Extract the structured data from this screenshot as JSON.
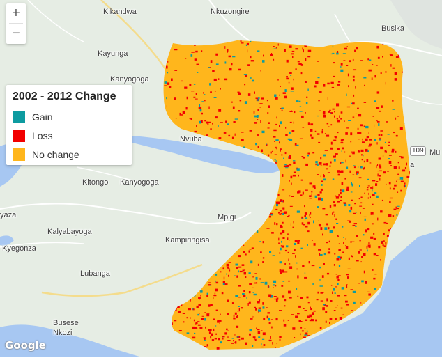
{
  "colors": {
    "land": "#e6ede4",
    "land_alt": "#dde8d8",
    "water": "#a7c7f2",
    "road": "#ffffff",
    "road_major": "#f4dc8c",
    "gain": "#0d9ba0",
    "loss": "#f20000",
    "no_change": "#ffb61c"
  },
  "zoom": {
    "in_label": "+",
    "out_label": "−"
  },
  "legend": {
    "title": "2002 - 2012 Change",
    "items": [
      {
        "label": "Gain",
        "color": "#0d9ba0"
      },
      {
        "label": "Loss",
        "color": "#f20000"
      },
      {
        "label": "No change",
        "color": "#ffb61c"
      }
    ]
  },
  "places": {
    "kikandwa": "Kikandwa",
    "nkuzongire": "Nkuzongire",
    "busika": "Busika",
    "kayunga": "Kayunga",
    "kanyogoga1": "Kanyogoga",
    "nvuba": "Nvuba",
    "kitongo": "Kitongo",
    "kanyogoga2": "Kanyogoga",
    "yaza": "yaza",
    "kalyabayoga": "Kalyabayoga",
    "mpigi": "Mpigi",
    "kyegonza": "Kyegonza",
    "kampiringisa": "Kampiringisa",
    "lubanga": "Lubanga",
    "busese": "Busese",
    "nkozi": "Nkozi",
    "mu": "Mu",
    "a": "a"
  },
  "road_shield": "109",
  "attribution": "Google"
}
